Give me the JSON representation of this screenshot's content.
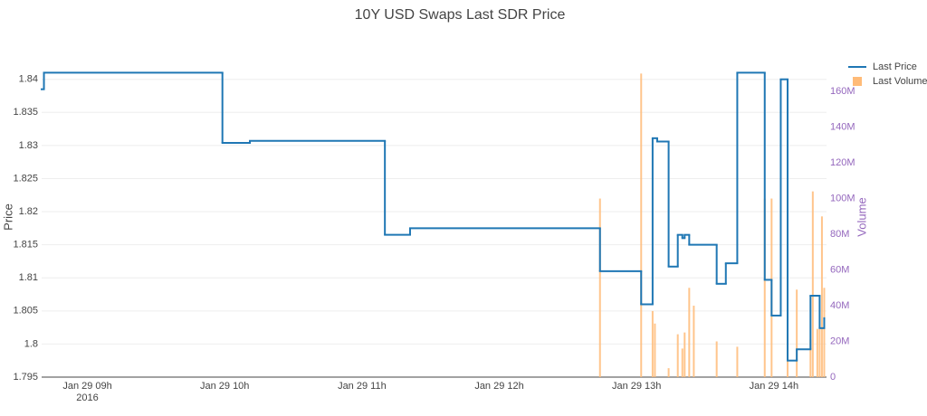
{
  "chart_data": {
    "type": "line",
    "title": "10Y USD Swaps Last SDR Price",
    "xlabel_year": "2016",
    "ylabel": "Price",
    "y2label": "Volume",
    "xlim": [
      "2016-01-29 08:40",
      "2016-01-29 14:23"
    ],
    "xticks": [
      {
        "value": "2016-01-29 09:00",
        "label": "Jan 29 09h"
      },
      {
        "value": "2016-01-29 10:00",
        "label": "Jan 29 10h"
      },
      {
        "value": "2016-01-29 11:00",
        "label": "Jan 29 11h"
      },
      {
        "value": "2016-01-29 12:00",
        "label": "Jan 29 12h"
      },
      {
        "value": "2016-01-29 13:00",
        "label": "Jan 29 13h"
      },
      {
        "value": "2016-01-29 14:00",
        "label": "Jan 29 14h"
      }
    ],
    "ylim": [
      1.795,
      1.8416
    ],
    "yticks": [
      1.795,
      1.8,
      1.805,
      1.81,
      1.815,
      1.82,
      1.825,
      1.83,
      1.835,
      1.84
    ],
    "y2lim": [
      0,
      172700000
    ],
    "y2ticks": [
      0,
      {
        "value": 20000000,
        "label": "20M"
      },
      {
        "value": 40000000,
        "label": "40M"
      },
      {
        "value": 60000000,
        "label": "60M"
      },
      {
        "value": 80000000,
        "label": "80M"
      },
      {
        "value": 100000000,
        "label": "100M"
      },
      {
        "value": 120000000,
        "label": "120M"
      },
      {
        "value": 140000000,
        "label": "140M"
      },
      {
        "value": 160000000,
        "label": "160M"
      }
    ],
    "grid": true,
    "legend": "top-right",
    "series": [
      {
        "name": "Last Price",
        "color": "#1f77b4",
        "mode": "step",
        "x": [
          "2016-01-29 08:40",
          "2016-01-29 08:41",
          "2016-01-29 09:59",
          "2016-01-29 10:11",
          "2016-01-29 11:10",
          "2016-01-29 11:21",
          "2016-01-29 12:44",
          "2016-01-29 13:02",
          "2016-01-29 13:07",
          "2016-01-29 13:09",
          "2016-01-29 13:14",
          "2016-01-29 13:18",
          "2016-01-29 13:20",
          "2016-01-29 13:21",
          "2016-01-29 13:23",
          "2016-01-29 13:35",
          "2016-01-29 13:39",
          "2016-01-29 13:44",
          "2016-01-29 13:56",
          "2016-01-29 13:59",
          "2016-01-29 14:03",
          "2016-01-29 14:06",
          "2016-01-29 14:10",
          "2016-01-29 14:16",
          "2016-01-29 14:20",
          "2016-01-29 14:22"
        ],
        "values": [
          1.8385,
          1.841,
          1.8304,
          1.8307,
          1.8165,
          1.8175,
          1.811,
          1.806,
          1.8311,
          1.8306,
          1.8117,
          1.8165,
          1.816,
          1.8165,
          1.815,
          1.8091,
          1.8122,
          1.841,
          1.8097,
          1.8043,
          1.84,
          1.7975,
          1.7992,
          1.8073,
          1.8024,
          1.8039
        ]
      },
      {
        "name": "Last Volume",
        "color": "#ffbb78",
        "type": "bar",
        "axis": "y2",
        "x": [
          "2016-01-29 12:44",
          "2016-01-29 13:02",
          "2016-01-29 13:07",
          "2016-01-29 13:08",
          "2016-01-29 13:14",
          "2016-01-29 13:18",
          "2016-01-29 13:20",
          "2016-01-29 13:21",
          "2016-01-29 13:23",
          "2016-01-29 13:25",
          "2016-01-29 13:35",
          "2016-01-29 13:44",
          "2016-01-29 13:56",
          "2016-01-29 13:59",
          "2016-01-29 14:06",
          "2016-01-29 14:10",
          "2016-01-29 14:16",
          "2016-01-29 14:17",
          "2016-01-29 14:19",
          "2016-01-29 14:20",
          "2016-01-29 14:21",
          "2016-01-29 14:22"
        ],
        "values": [
          100000000,
          170000000,
          37000000,
          30000000,
          5000000,
          24000000,
          16000000,
          25000000,
          50000000,
          40000000,
          20000000,
          17000000,
          100000000,
          100000000,
          24000000,
          49000000,
          21000000,
          104000000,
          27000000,
          27000000,
          90000000,
          50000000
        ]
      }
    ]
  }
}
